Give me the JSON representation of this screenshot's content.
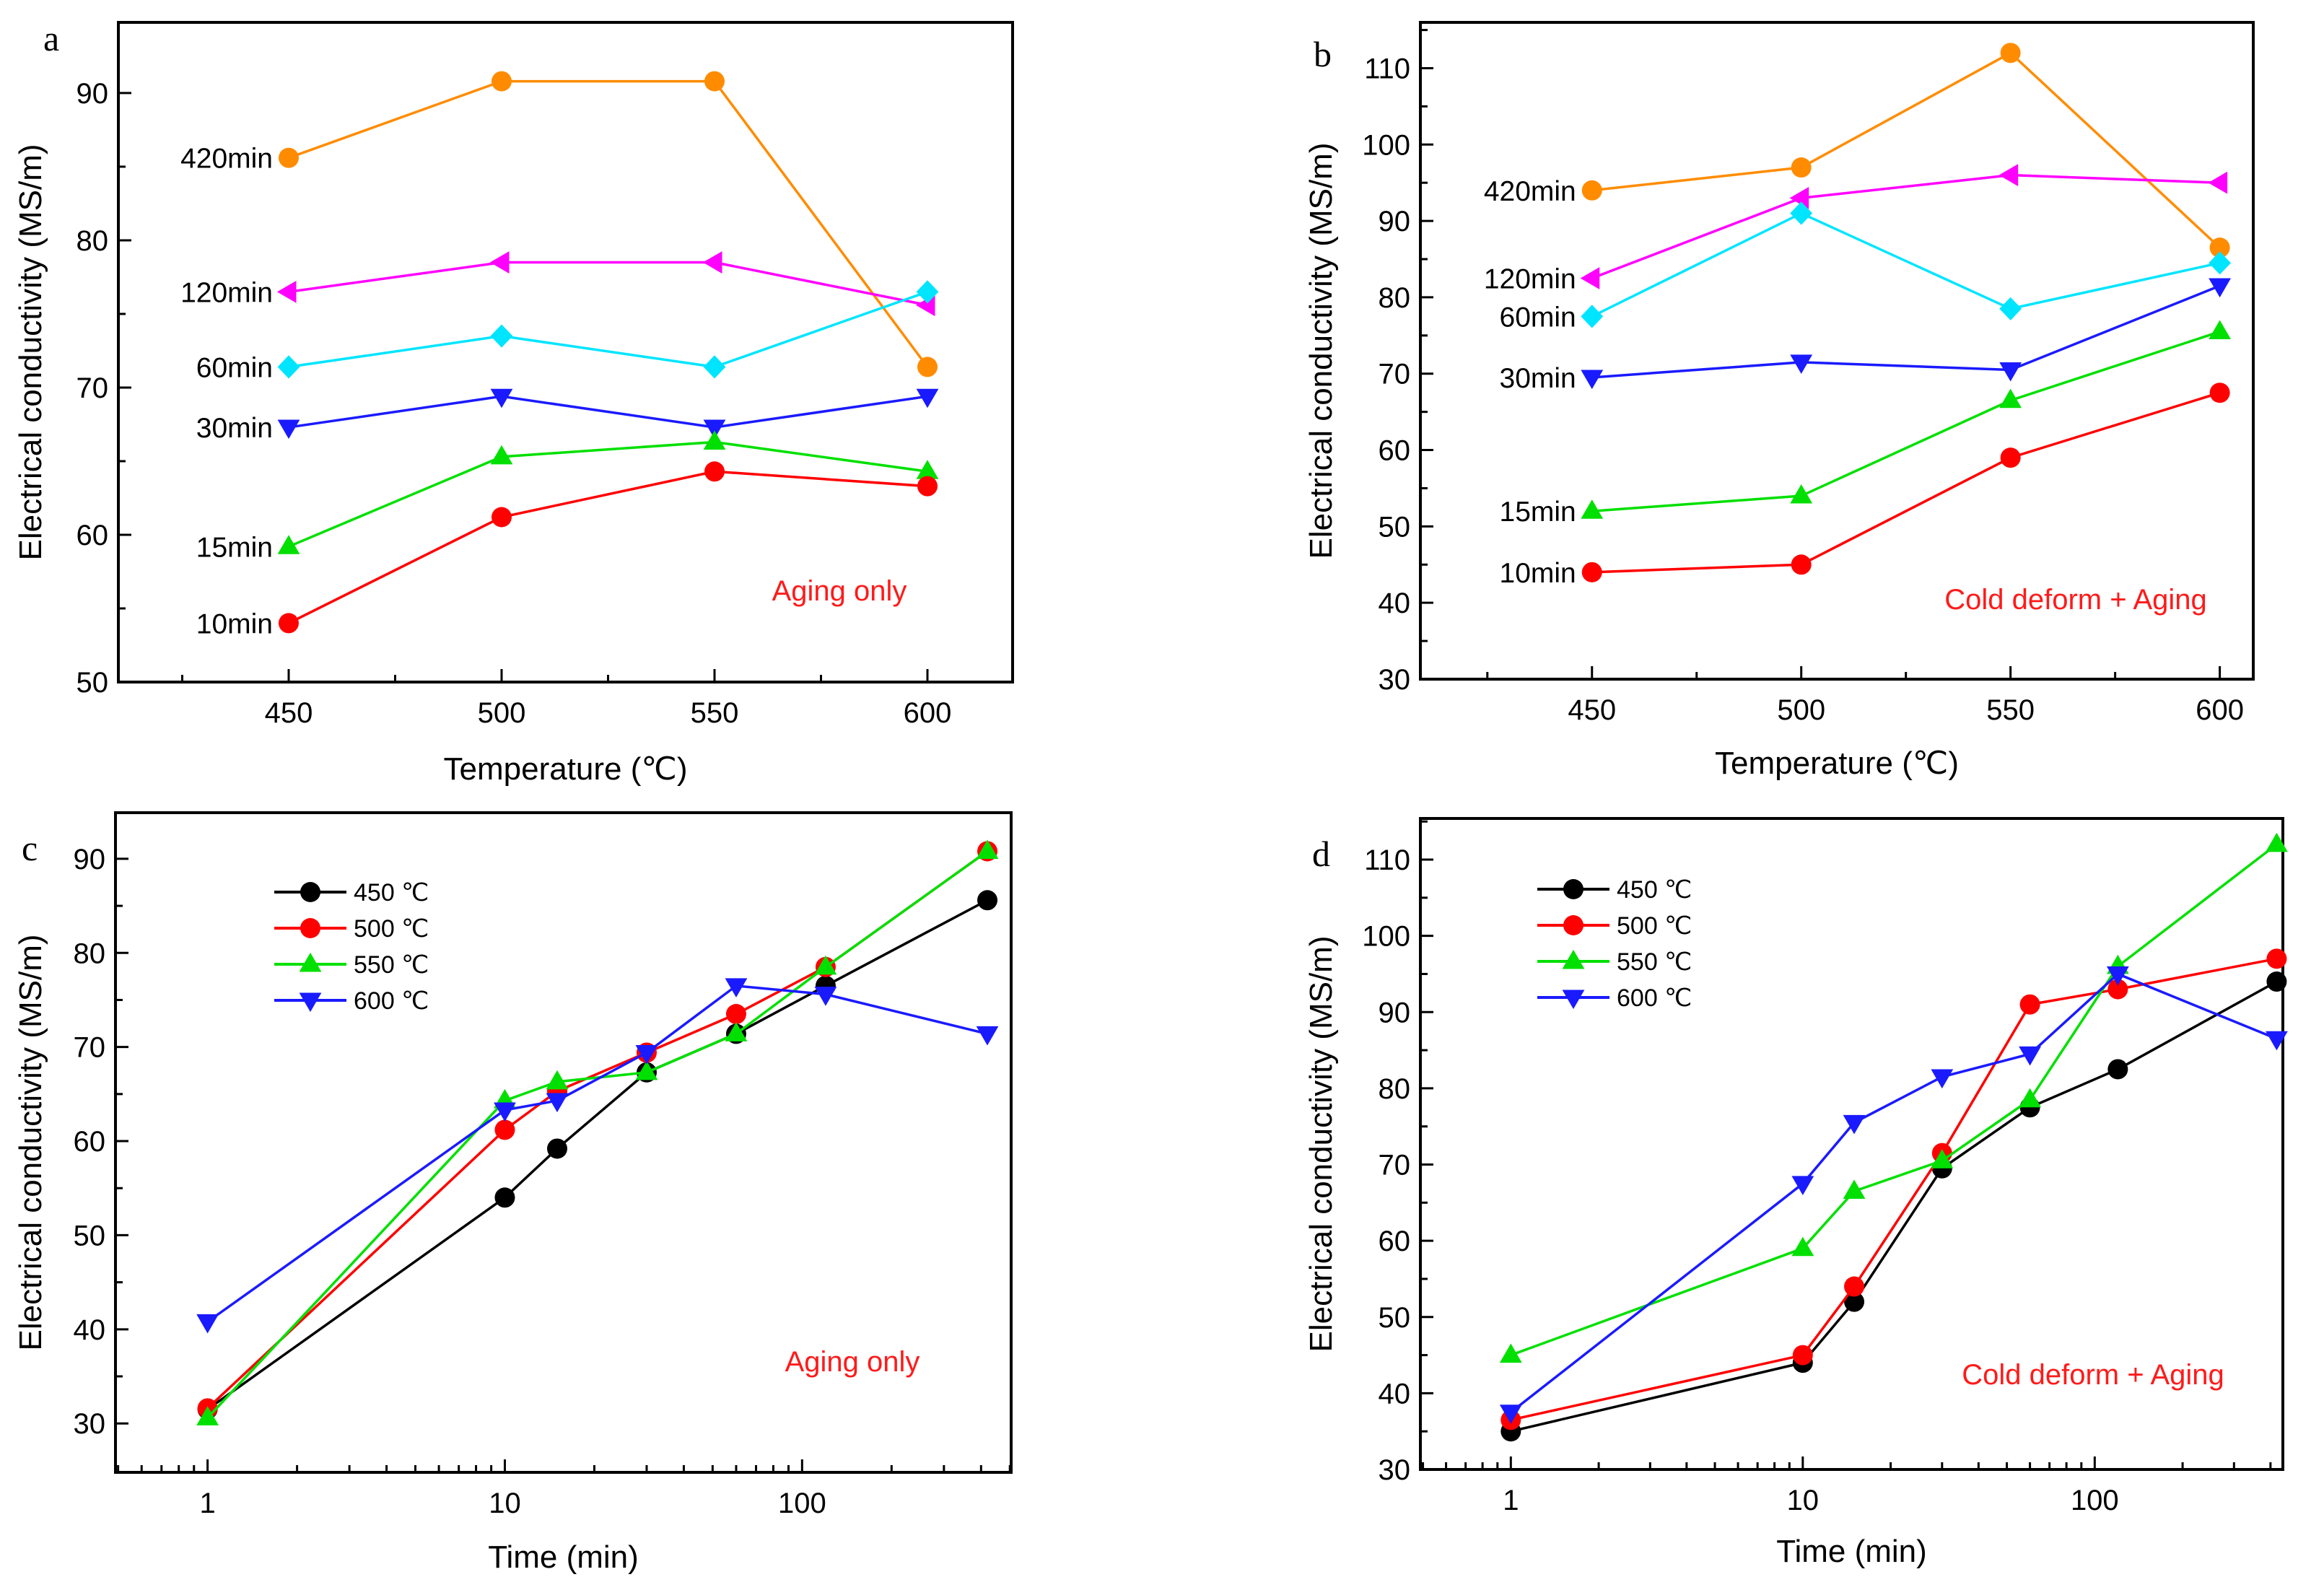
{
  "chart_data": [
    {
      "panel": "a",
      "type": "line",
      "xscale": "linear",
      "xlabel": "Temperature (℃)",
      "ylabel": "Electrical conductivity (MS/m)",
      "annotation": "Aging only",
      "x": [
        450,
        500,
        550,
        600
      ],
      "xticks": [
        450,
        500,
        550,
        600
      ],
      "yticks": [
        50,
        60,
        70,
        80,
        90
      ],
      "xlim": [
        410,
        620
      ],
      "ylim": [
        50,
        94.8
      ],
      "legend": "inline-left",
      "series": [
        {
          "name": "420min",
          "color": "#ff8c00",
          "marker": "circle",
          "values": [
            85.6,
            90.8,
            90.8,
            71.4
          ]
        },
        {
          "name": "120min",
          "color": "#ff00ff",
          "marker": "triangle-left",
          "values": [
            76.5,
            78.5,
            78.5,
            75.6
          ]
        },
        {
          "name": "60min",
          "color": "#00e5ff",
          "marker": "diamond",
          "values": [
            71.4,
            73.5,
            71.4,
            76.5
          ]
        },
        {
          "name": "30min",
          "color": "#1a1aff",
          "marker": "triangle-down",
          "values": [
            67.3,
            69.4,
            67.3,
            69.4
          ]
        },
        {
          "name": "15min",
          "color": "#00e000",
          "marker": "triangle-up",
          "values": [
            59.2,
            65.3,
            66.3,
            64.3
          ]
        },
        {
          "name": "10min",
          "color": "#ff0000",
          "marker": "circle",
          "values": [
            54.0,
            61.2,
            64.3,
            63.3
          ]
        }
      ]
    },
    {
      "panel": "b",
      "type": "line",
      "xscale": "linear",
      "xlabel": "Temperature (℃)",
      "ylabel": "Electrical conductivity (MS/m)",
      "annotation": "Cold deform + Aging",
      "x": [
        450,
        500,
        550,
        600
      ],
      "xticks": [
        450,
        500,
        550,
        600
      ],
      "yticks": [
        30,
        40,
        50,
        60,
        70,
        80,
        90,
        100,
        110
      ],
      "xlim": [
        409,
        608
      ],
      "ylim": [
        30,
        116
      ],
      "legend": "inline-left",
      "series": [
        {
          "name": "420min",
          "color": "#ff8c00",
          "marker": "circle",
          "values": [
            94,
            97,
            112,
            86.5
          ]
        },
        {
          "name": "120min",
          "color": "#ff00ff",
          "marker": "triangle-left",
          "values": [
            82.5,
            93,
            96,
            95
          ]
        },
        {
          "name": "60min",
          "color": "#00e5ff",
          "marker": "diamond",
          "values": [
            77.5,
            91,
            78.5,
            84.5
          ]
        },
        {
          "name": "30min",
          "color": "#1a1aff",
          "marker": "triangle-down",
          "values": [
            69.5,
            71.5,
            70.5,
            81.5
          ]
        },
        {
          "name": "15min",
          "color": "#00e000",
          "marker": "triangle-up",
          "values": [
            52,
            54,
            66.5,
            75.5
          ]
        },
        {
          "name": "10min",
          "color": "#ff0000",
          "marker": "circle",
          "values": [
            44,
            45,
            59,
            67.5
          ]
        }
      ]
    },
    {
      "panel": "c",
      "type": "line",
      "xscale": "log",
      "xlabel": "Time (min)",
      "ylabel": "Electrical conductivity (MS/m)",
      "annotation": "Aging only",
      "x": [
        1,
        10,
        15,
        30,
        60,
        120,
        420
      ],
      "xticks": [
        1,
        10,
        100
      ],
      "yticks": [
        30,
        40,
        50,
        60,
        70,
        80,
        90
      ],
      "xlim": [
        0.49,
        505
      ],
      "ylim": [
        24.8,
        94.9
      ],
      "legend": "top-left",
      "series": [
        {
          "name": "450 ℃",
          "color": "#000000",
          "marker": "circle",
          "values": [
            31.5,
            54.0,
            59.2,
            67.3,
            71.4,
            76.5,
            85.6
          ]
        },
        {
          "name": "500 ℃",
          "color": "#ff0000",
          "marker": "circle",
          "values": [
            31.6,
            61.2,
            65.3,
            69.4,
            73.5,
            78.5,
            90.8
          ]
        },
        {
          "name": "550 ℃",
          "color": "#00e000",
          "marker": "triangle-up",
          "values": [
            30.6,
            64.3,
            66.3,
            67.3,
            71.4,
            78.5,
            90.8
          ]
        },
        {
          "name": "600 ℃",
          "color": "#1a1aff",
          "marker": "triangle-down",
          "values": [
            40.8,
            63.3,
            64.3,
            69.4,
            76.5,
            75.6,
            71.4
          ]
        }
      ]
    },
    {
      "panel": "d",
      "type": "line",
      "xscale": "log",
      "xlabel": "Time (min)",
      "ylabel": "Electrical conductivity (MS/m)",
      "annotation": "Cold deform + Aging",
      "x": [
        1,
        10,
        15,
        30,
        60,
        120,
        420
      ],
      "xticks": [
        1,
        10,
        100
      ],
      "yticks": [
        30,
        40,
        50,
        60,
        70,
        80,
        90,
        100,
        110
      ],
      "xlim": [
        0.49,
        441
      ],
      "ylim": [
        30,
        115.4
      ],
      "legend": "top-left",
      "series": [
        {
          "name": "450 ℃",
          "color": "#000000",
          "marker": "circle",
          "values": [
            35,
            44,
            52,
            69.5,
            77.5,
            82.5,
            94
          ]
        },
        {
          "name": "500 ℃",
          "color": "#ff0000",
          "marker": "circle",
          "values": [
            36.5,
            45,
            54,
            71.5,
            91,
            93,
            97
          ]
        },
        {
          "name": "550 ℃",
          "color": "#00e000",
          "marker": "triangle-up",
          "values": [
            45,
            59,
            66.5,
            70.5,
            78.5,
            96,
            112
          ]
        },
        {
          "name": "600 ℃",
          "color": "#1a1aff",
          "marker": "triangle-down",
          "values": [
            37.5,
            67.5,
            75.5,
            81.5,
            84.5,
            95,
            86.5
          ]
        }
      ]
    }
  ]
}
